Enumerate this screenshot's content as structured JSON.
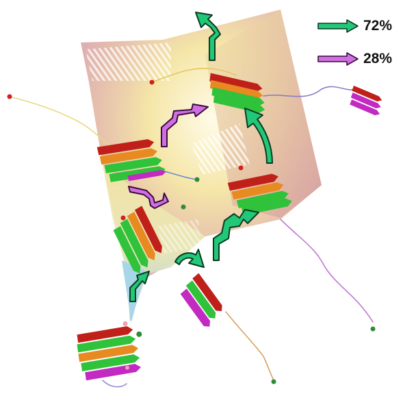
{
  "legend": {
    "items": [
      {
        "label": "72%",
        "color": "#22cc77",
        "name": "green-pathway"
      },
      {
        "label": "28%",
        "color": "#cc66dd",
        "name": "magenta-pathway"
      }
    ]
  },
  "colors": {
    "surface_high": "#d9a0a3",
    "surface_mid": "#f5e6a8",
    "surface_low": "#b8dde6",
    "strand_red": "#c0201a",
    "strand_green": "#2fc23a",
    "strand_orange": "#e88a22",
    "strand_magenta": "#c22ac2",
    "arrow_green": "#21c878",
    "arrow_magenta": "#cf6fe0"
  }
}
